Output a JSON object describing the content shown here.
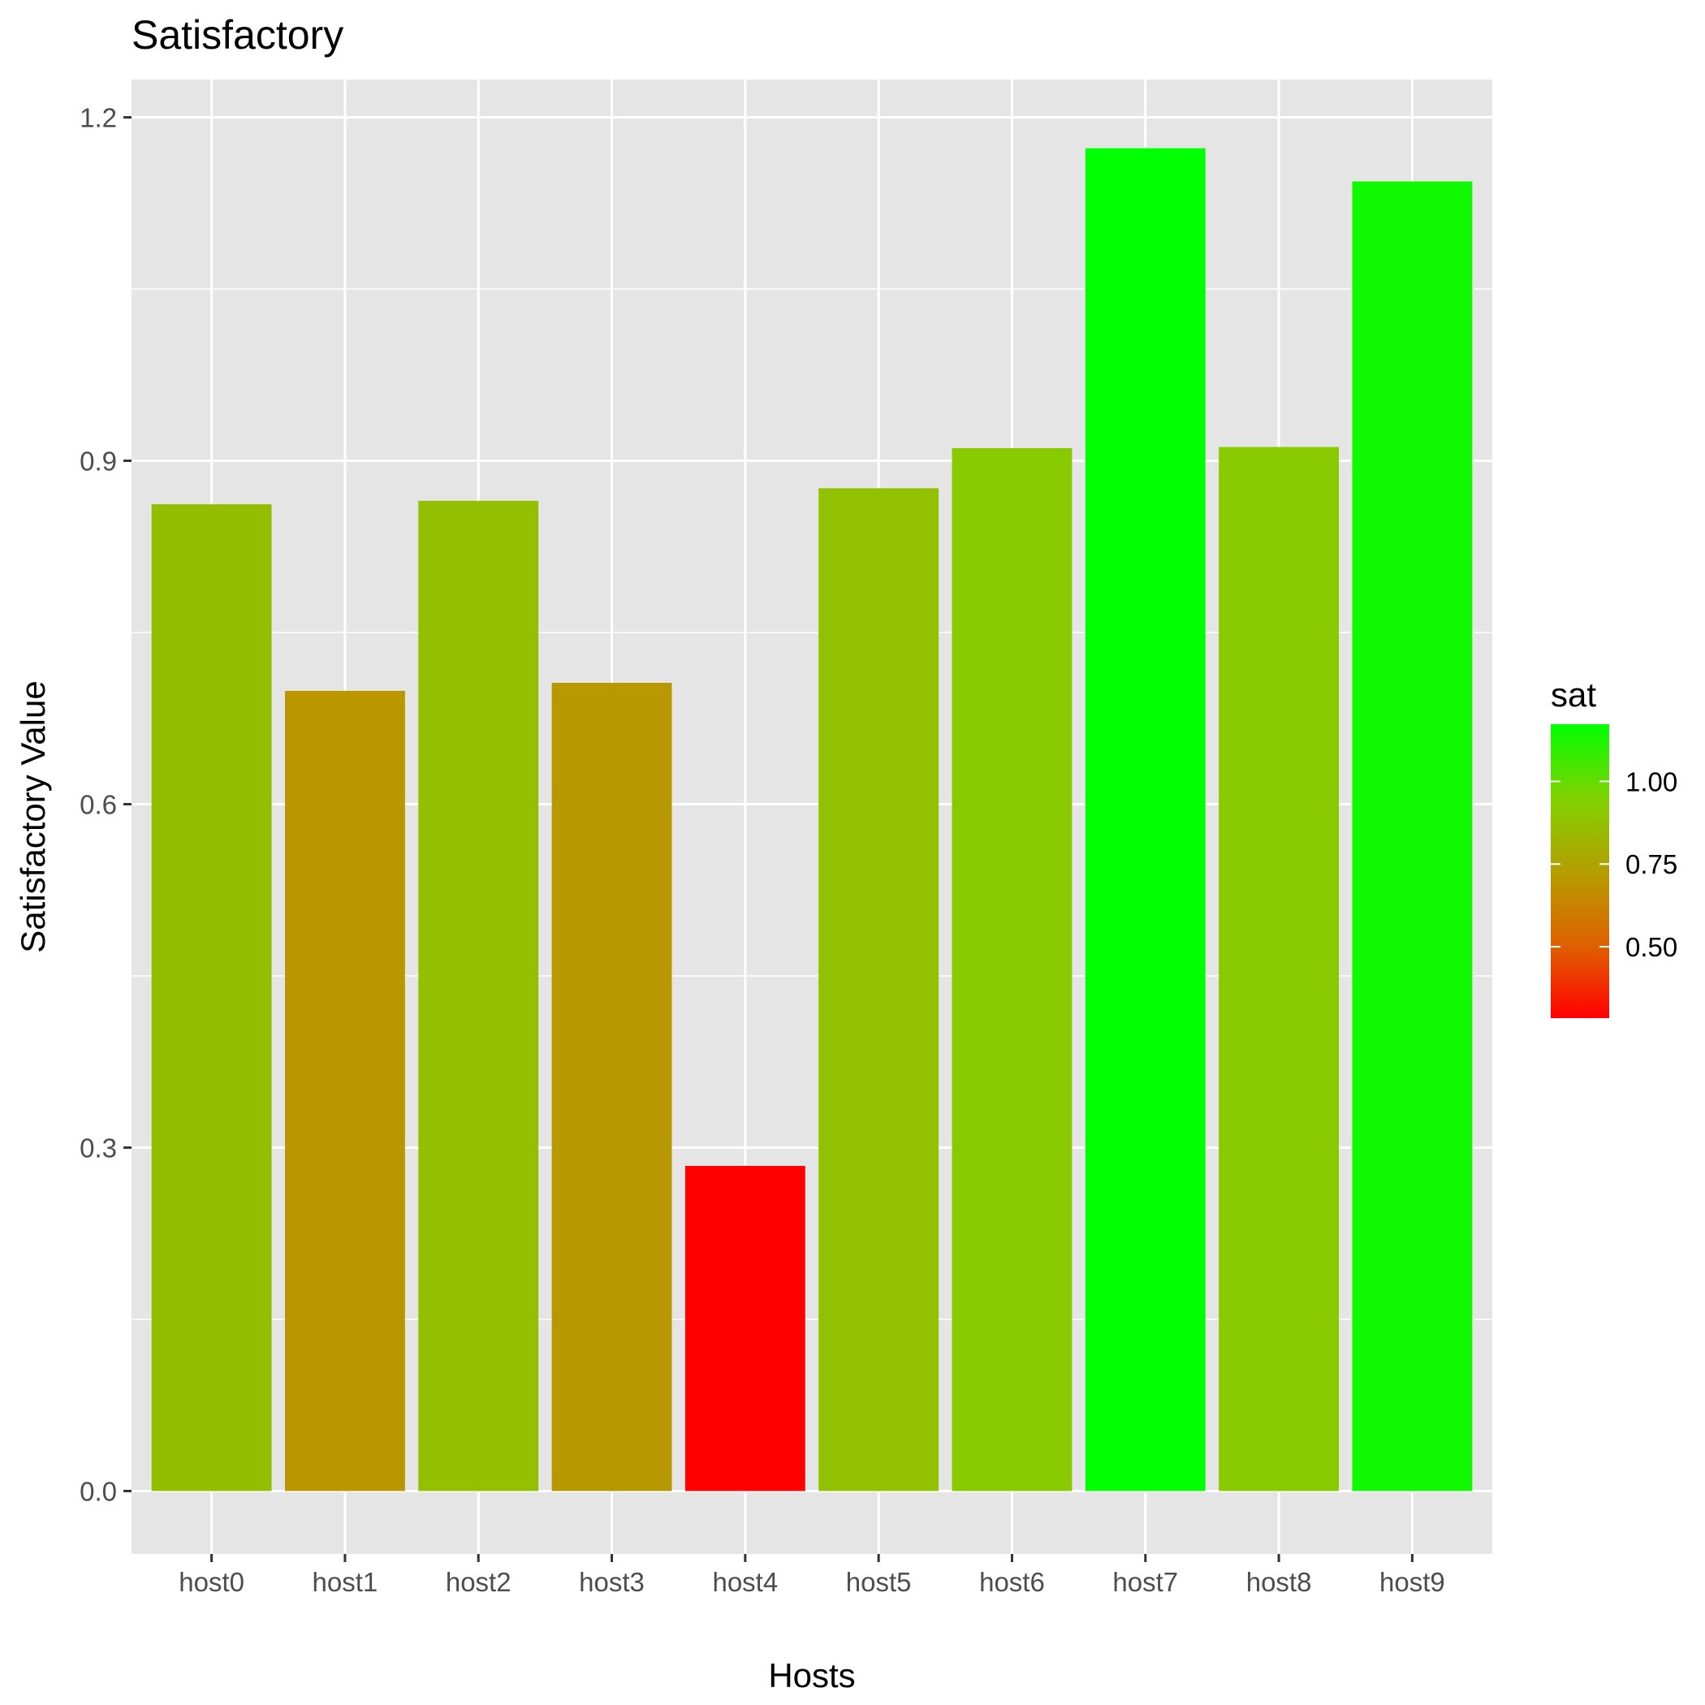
{
  "chart_data": {
    "type": "bar",
    "title": "Satisfactory",
    "xlabel": "Hosts",
    "ylabel": "Satisfactory Value",
    "categories": [
      "host0",
      "host1",
      "host2",
      "host3",
      "host4",
      "host5",
      "host6",
      "host7",
      "host8",
      "host9"
    ],
    "values": [
      0.862,
      0.699,
      0.865,
      0.706,
      0.284,
      0.876,
      0.911,
      1.173,
      0.912,
      1.144
    ],
    "ylim": [
      -0.055,
      1.233
    ],
    "yticks": [
      0.0,
      0.3,
      0.6,
      0.9,
      1.2
    ],
    "ytick_labels": [
      "0.0",
      "0.3",
      "0.6",
      "0.9",
      "1.2"
    ],
    "grid": true,
    "legend": {
      "title": "sat",
      "placement": "right",
      "type": "colorbar",
      "range": [
        0.284,
        1.173
      ],
      "ticks": [
        0.5,
        0.75,
        1.0
      ],
      "tick_labels": [
        "0.50",
        "0.75",
        "1.00"
      ],
      "color_low": "#ff0000",
      "color_high": "#00ff00"
    },
    "colors": {
      "panel_background": "#e5e5e5",
      "grid": "#ffffff",
      "tick_text": "#4d4d4d"
    }
  }
}
